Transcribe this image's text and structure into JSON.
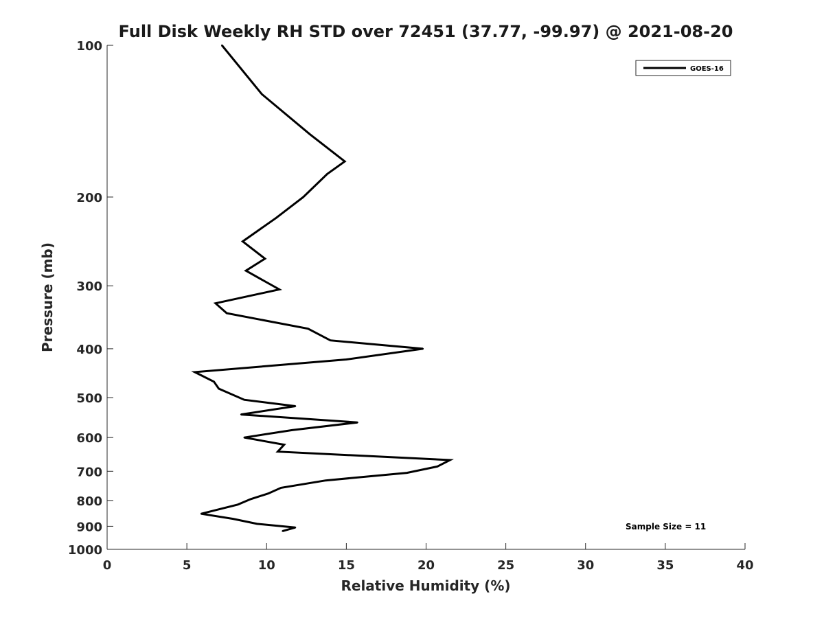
{
  "chart_data": {
    "type": "line",
    "title": "Full Disk Weekly RH STD over 72451 (37.77, -99.97) @ 2021-08-20",
    "xlabel": "Relative Humidity (%)",
    "ylabel": "Pressure (mb)",
    "xlim": [
      0,
      40
    ],
    "ylim": [
      100,
      1000
    ],
    "yscale": "log",
    "yreversed": true,
    "xticks": [
      0,
      5,
      10,
      15,
      20,
      25,
      30,
      35,
      40
    ],
    "yticks": [
      100,
      200,
      300,
      400,
      500,
      600,
      700,
      800,
      900,
      1000
    ],
    "legend": {
      "placement": "top-right",
      "entries": [
        "GOES-16"
      ]
    },
    "annotations": [
      "Sample Size = 11"
    ],
    "series": [
      {
        "name": "GOES-16",
        "color": "#000000",
        "x": [
          7.2,
          9.7,
          12.7,
          14.9,
          13.8,
          12.3,
          10.6,
          8.5,
          9.9,
          8.7,
          10.8,
          6.8,
          7.5,
          12.6,
          14.0,
          19.8,
          15.0,
          5.5,
          6.7,
          7.0,
          8.6,
          11.8,
          8.4,
          15.7,
          11.6,
          8.6,
          11.1,
          10.7,
          21.5,
          20.7,
          18.8,
          13.7,
          10.9,
          10.1,
          9.0,
          8.2,
          5.9,
          7.9,
          9.4,
          11.8,
          11.0
        ],
        "y": [
          100,
          125,
          150,
          170,
          180,
          200,
          220,
          245,
          265,
          280,
          305,
          325,
          340,
          365,
          385,
          400,
          420,
          445,
          465,
          480,
          505,
          520,
          540,
          560,
          580,
          600,
          620,
          640,
          665,
          685,
          705,
          730,
          755,
          775,
          795,
          815,
          850,
          870,
          890,
          905,
          920
        ]
      }
    ]
  }
}
